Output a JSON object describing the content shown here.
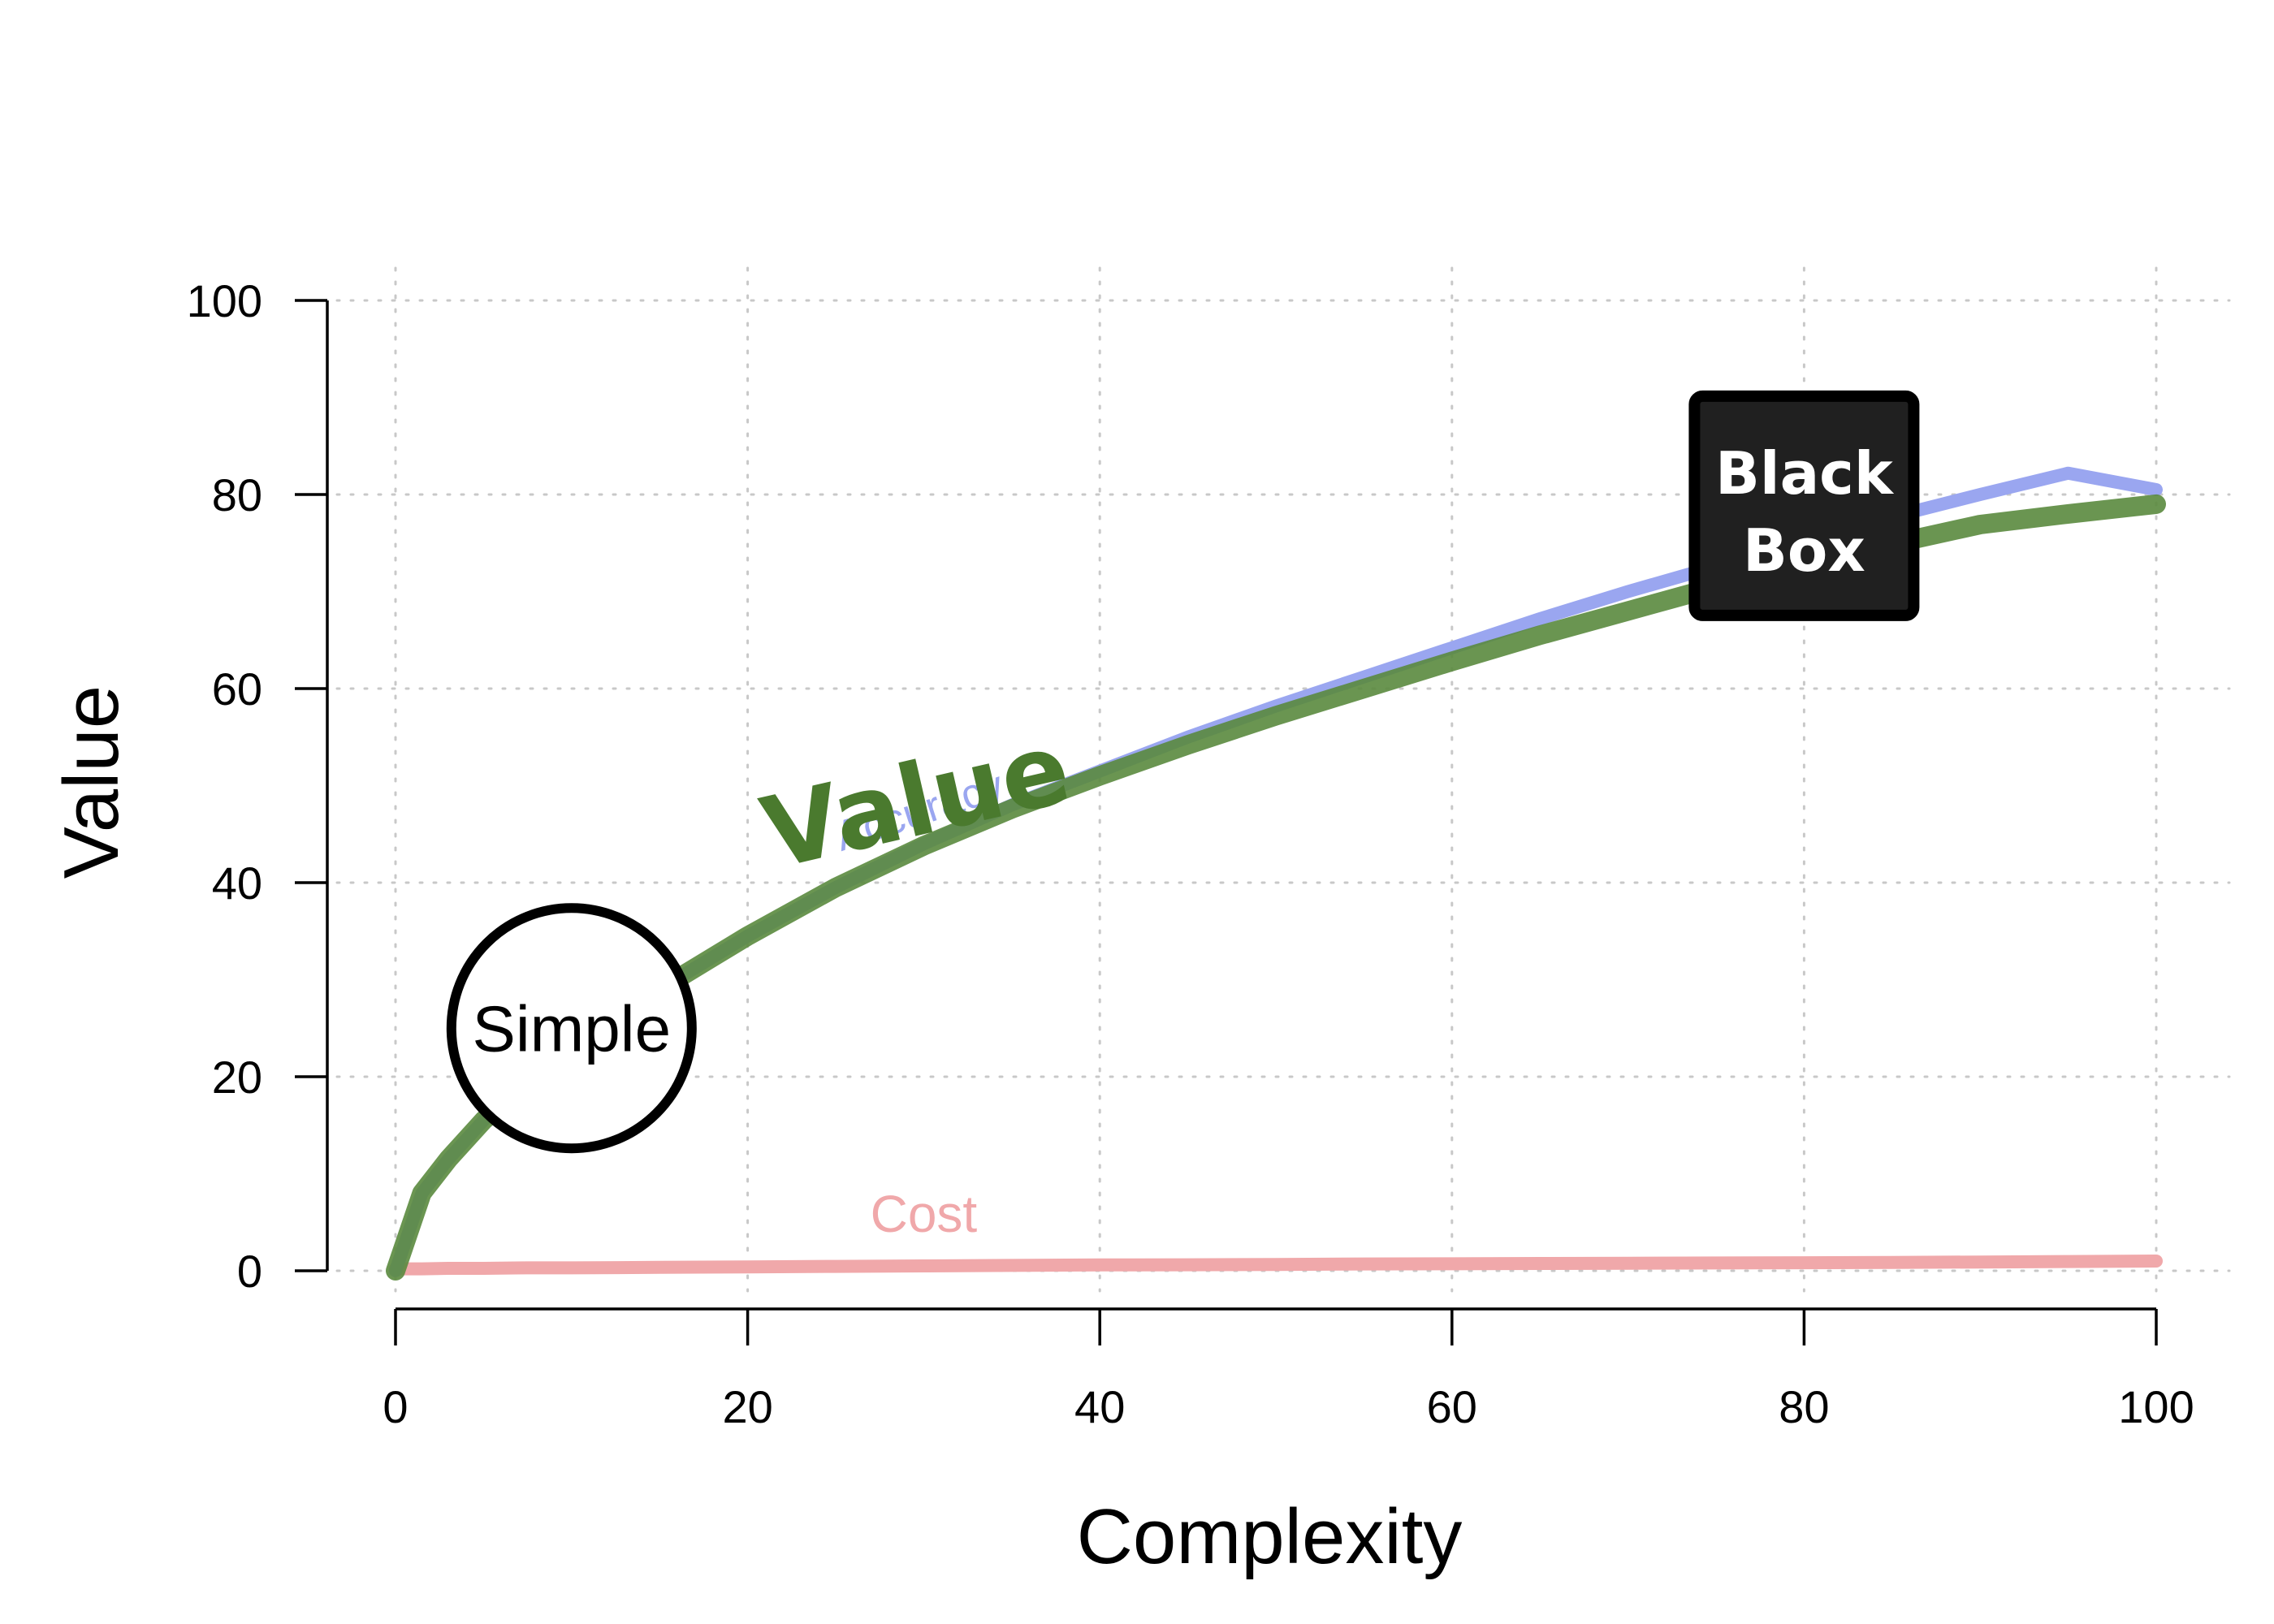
{
  "chart_data": {
    "type": "line",
    "title": "",
    "xlabel": "Complexity",
    "ylabel": "Value",
    "xlim": [
      0,
      100
    ],
    "ylim": [
      0,
      100
    ],
    "xticks": [
      0,
      20,
      40,
      60,
      80,
      100
    ],
    "yticks": [
      0,
      20,
      40,
      60,
      80,
      100
    ],
    "grid": true,
    "x": [
      0,
      1.5,
      3,
      5,
      7.5,
      10,
      15,
      20,
      25,
      30,
      35,
      40,
      45,
      50,
      55,
      60,
      65,
      70,
      75,
      80,
      85,
      90,
      95,
      100
    ],
    "series": [
      {
        "name": "Accuracy",
        "color": "#9aa6f0",
        "values": [
          0,
          8,
          11.5,
          15.5,
          19.5,
          23,
          29,
          34.5,
          39.5,
          44,
          48,
          51.5,
          55,
          58.2,
          61.2,
          64.2,
          67.2,
          70,
          72.6,
          75.2,
          77.7,
          80.0,
          82.2,
          80.5
        ]
      },
      {
        "name": "Value",
        "color": "#5a8a3e",
        "values": [
          0,
          8,
          11.5,
          15.5,
          19.5,
          23,
          29,
          34.5,
          39.5,
          43.8,
          47.6,
          51,
          54.2,
          57.2,
          60,
          62.8,
          65.5,
          68,
          70.5,
          72.8,
          74.9,
          76.9,
          78.0,
          79
        ]
      },
      {
        "name": "Cost",
        "color": "#f0a8aa",
        "values": [
          0.2,
          0.2,
          0.25,
          0.25,
          0.3,
          0.3,
          0.35,
          0.4,
          0.45,
          0.5,
          0.55,
          0.6,
          0.62,
          0.65,
          0.7,
          0.72,
          0.75,
          0.78,
          0.8,
          0.83,
          0.86,
          0.9,
          0.95,
          1.0
        ]
      }
    ],
    "annotations": [
      {
        "text": "Value",
        "color": "#4a7a2e",
        "x": 30,
        "y": 45,
        "angle": -13
      },
      {
        "text": "Accuracy",
        "color": "#9aa6f0",
        "x": 30,
        "y": 46,
        "angle": -18
      },
      {
        "text": "Cost",
        "color": "#f0a8aa",
        "x": 30,
        "y": 4
      },
      {
        "text": "Simple",
        "shape": "circle",
        "x": 10,
        "y": 25
      },
      {
        "text": "Black",
        "text2": "Box",
        "shape": "box",
        "x": 80,
        "y": 78
      }
    ]
  }
}
